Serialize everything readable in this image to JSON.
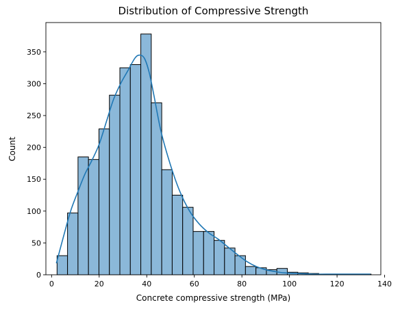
{
  "chart_data": {
    "type": "bar",
    "subtype": "histogram",
    "title": "Distribution of Compressive Strength",
    "xlabel": "Concrete compressive strength (MPa)",
    "ylabel": "Count",
    "xlim": [
      -2.4,
      138.4
    ],
    "ylim": [
      0,
      396
    ],
    "x_ticks": [
      0,
      20,
      40,
      60,
      80,
      100,
      120,
      140
    ],
    "y_ticks": [
      0,
      50,
      100,
      150,
      200,
      250,
      300,
      350
    ],
    "bin_width": 4.4,
    "bin_start": 2.3,
    "values": [
      30,
      97,
      185,
      181,
      229,
      282,
      325,
      330,
      378,
      270,
      165,
      125,
      106,
      68,
      68,
      54,
      42,
      30,
      13,
      11,
      8,
      10,
      4,
      3,
      2,
      1,
      1,
      1,
      1,
      1
    ],
    "kde": {
      "x": [
        2,
        5,
        8,
        11,
        14,
        17,
        20,
        23,
        26,
        29,
        32,
        35,
        37,
        39,
        41,
        43,
        46,
        50,
        54,
        58,
        62,
        66,
        70,
        74,
        78,
        82,
        86,
        90,
        94,
        98,
        104,
        110,
        118,
        126,
        134
      ],
      "y": [
        18,
        60,
        100,
        130,
        158,
        180,
        205,
        240,
        275,
        300,
        320,
        340,
        345,
        340,
        318,
        282,
        225,
        172,
        130,
        100,
        80,
        66,
        56,
        44,
        32,
        21,
        13,
        8,
        5,
        3,
        2,
        1,
        1,
        1,
        1
      ]
    },
    "grid": false,
    "legend": "none",
    "colors": {
      "bar_fill": "#8bb8d9",
      "bar_edge": "#000000",
      "kde_line": "#1f77b4"
    }
  }
}
